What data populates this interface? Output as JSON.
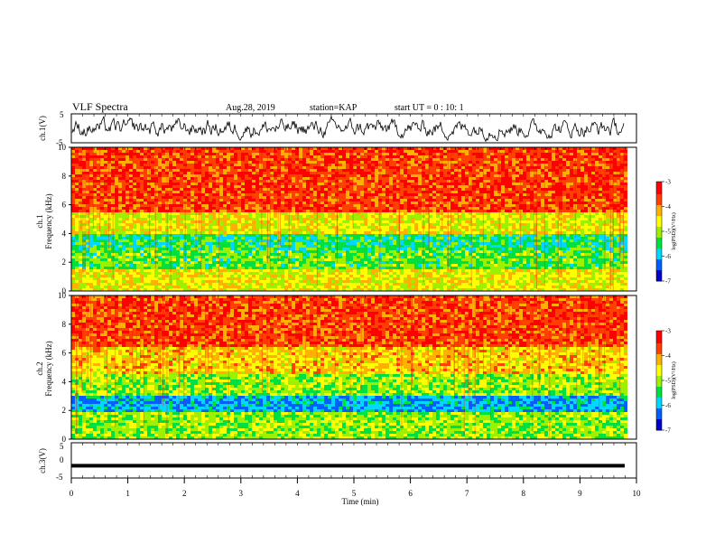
{
  "header": {
    "title": "VLF Spectra",
    "date": "Aug.28, 2019",
    "station": "station=KAP",
    "start": "start UT =  0 : 10: 1"
  },
  "colors": {
    "spectrogram_scale": [
      "#0000c8",
      "#0060ff",
      "#00d8ff",
      "#00e040",
      "#9cf000",
      "#ffff00",
      "#ffb000",
      "#ff4000",
      "#ff0000",
      "#ffc8c8"
    ],
    "trace": "#000000"
  },
  "chart_data": [
    {
      "type": "line",
      "panel": "ch.1 waveform",
      "ylabel": "ch.1(V)",
      "ylim": [
        -5,
        5
      ],
      "yticks": [
        "5",
        "-5"
      ],
      "description_values": {
        "mean": 0,
        "amplitude_approx": 3
      }
    },
    {
      "type": "heatmap",
      "panel": "ch.1 spectrogram",
      "ylabel_line1": "ch.1",
      "ylabel_line2": "Frequency (kHz)",
      "ylim": [
        0,
        10
      ],
      "yticks": [
        "0",
        "2",
        "4",
        "6",
        "8",
        "10"
      ],
      "xlim": [
        0,
        10
      ],
      "colorbar": {
        "label": "log(PSD)(V²/Hz)",
        "range": [
          -7,
          -3
        ],
        "ticks": [
          "-3",
          "-4",
          "-5",
          "-6",
          "-7"
        ]
      },
      "bands_khz": [
        {
          "from": 0,
          "to": 1.5,
          "level": -4.6
        },
        {
          "from": 1.5,
          "to": 2.8,
          "level": -5.2
        },
        {
          "from": 2.8,
          "to": 4.0,
          "level": -5.5
        },
        {
          "from": 4.0,
          "to": 5.5,
          "level": -4.6
        },
        {
          "from": 5.5,
          "to": 10,
          "level": -3.6
        }
      ]
    },
    {
      "type": "heatmap",
      "panel": "ch.2 spectrogram",
      "ylabel_line1": "ch.2",
      "ylabel_line2": "Frequency (kHz)",
      "ylim": [
        0,
        10
      ],
      "yticks": [
        "0",
        "2",
        "4",
        "6",
        "8",
        "10"
      ],
      "xlim": [
        0,
        10
      ],
      "colorbar": {
        "label": "log(PSD)(V²/Hz)",
        "range": [
          -7,
          -3
        ],
        "ticks": [
          "-3",
          "-4",
          "-5",
          "-6",
          "-7"
        ]
      },
      "bands_khz": [
        {
          "from": 0,
          "to": 1.8,
          "level": -5.0
        },
        {
          "from": 1.8,
          "to": 3.0,
          "level": -6.0
        },
        {
          "from": 3.0,
          "to": 4.5,
          "level": -5.0
        },
        {
          "from": 4.5,
          "to": 6.5,
          "level": -4.3
        },
        {
          "from": 6.5,
          "to": 10,
          "level": -3.6
        }
      ]
    },
    {
      "type": "line",
      "panel": "ch.3 waveform",
      "ylabel": "ch.3(V)",
      "ylim": [
        -5,
        5
      ],
      "yticks": [
        "5",
        "0",
        "-5"
      ],
      "constant_value": -1.5,
      "xlabel": "Time (min)",
      "xlim": [
        0,
        10
      ],
      "xticks": [
        "0",
        "1",
        "2",
        "3",
        "4",
        "5",
        "6",
        "7",
        "8",
        "9",
        "10"
      ]
    }
  ]
}
